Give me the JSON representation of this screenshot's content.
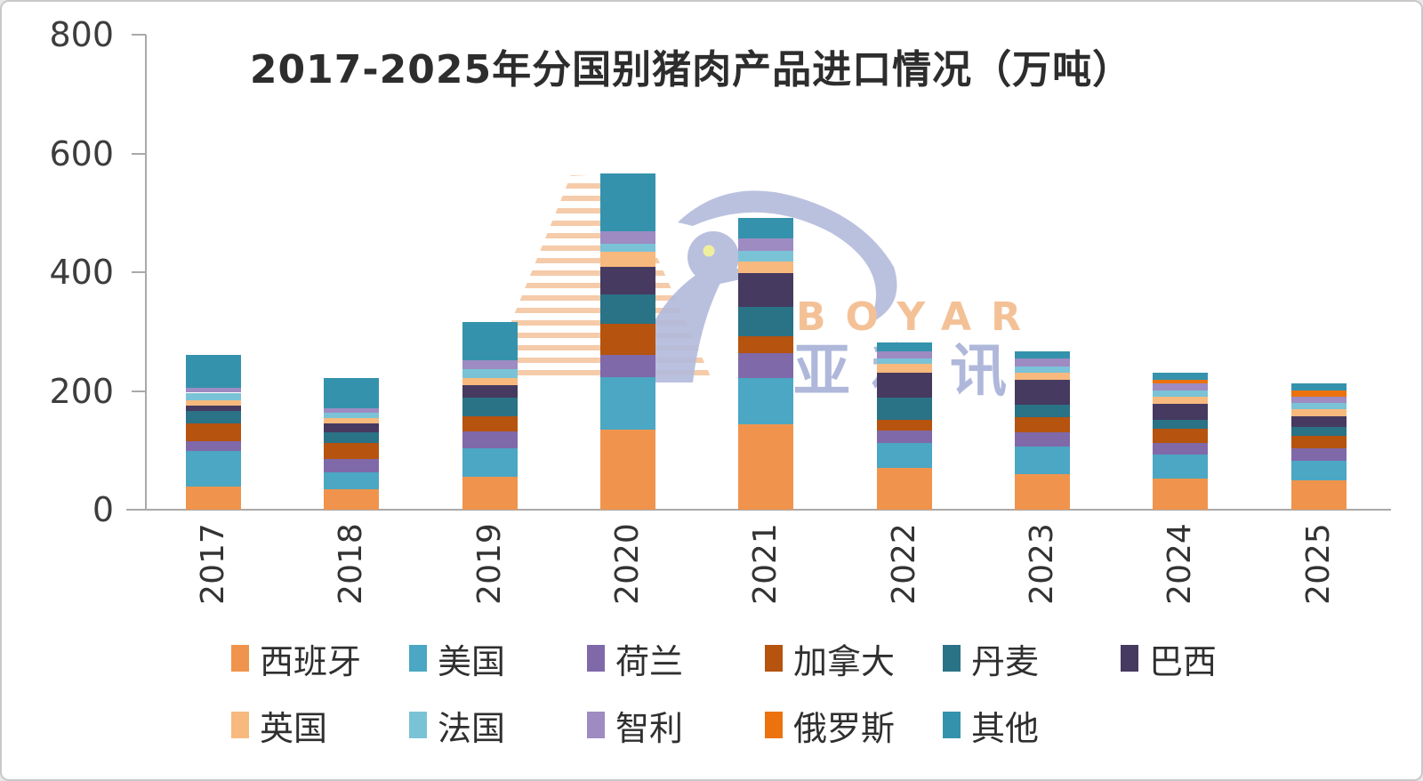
{
  "title": "2017-2025年分国别猪肉产品进口情况（万吨）",
  "watermark": {
    "en": "BOYAR",
    "cn": "亚和讯"
  },
  "chart_data": {
    "type": "bar",
    "stacked": true,
    "title": "2017-2025年分国别猪肉产品进口情况（万吨）",
    "unit": "万吨",
    "xlabel": "",
    "ylabel": "",
    "ylim": [
      0,
      800
    ],
    "y_ticks": [
      0,
      200,
      400,
      600,
      800
    ],
    "grid": false,
    "legend_position": "bottom",
    "categories": [
      "2017",
      "2018",
      "2019",
      "2020",
      "2021",
      "2022",
      "2023",
      "2024",
      "2025"
    ],
    "series": [
      {
        "name": "西班牙",
        "color": "#F0944D",
        "values": [
          39,
          34,
          55,
          135,
          144,
          71,
          60,
          52,
          49
        ]
      },
      {
        "name": "美国",
        "color": "#4BA7C3",
        "values": [
          60,
          29,
          48,
          88,
          78,
          41,
          46,
          41,
          34
        ]
      },
      {
        "name": "荷兰",
        "color": "#8069A9",
        "values": [
          16,
          22,
          29,
          37,
          41,
          22,
          24,
          19,
          21
        ]
      },
      {
        "name": "加拿大",
        "color": "#B5530F",
        "values": [
          31,
          27,
          26,
          53,
          29,
          18,
          26,
          24,
          20
        ]
      },
      {
        "name": "丹麦",
        "color": "#2A7286",
        "values": [
          21,
          19,
          31,
          50,
          49,
          37,
          21,
          16,
          16
        ]
      },
      {
        "name": "巴西",
        "color": "#463A60",
        "values": [
          9,
          15,
          21,
          46,
          57,
          42,
          41,
          27,
          17
        ]
      },
      {
        "name": "英国",
        "color": "#F7B97E",
        "values": [
          9,
          9,
          12,
          25,
          20,
          14,
          12,
          11,
          12
        ]
      },
      {
        "name": "法国",
        "color": "#7AC3D6",
        "values": [
          12,
          9,
          15,
          14,
          18,
          10,
          11,
          11,
          11
        ]
      },
      {
        "name": "智利",
        "color": "#9D8BC2",
        "values": [
          8,
          7,
          15,
          21,
          21,
          11,
          13,
          12,
          11
        ]
      },
      {
        "name": "俄罗斯",
        "color": "#EB720F",
        "values": [
          0,
          0,
          0,
          0,
          0,
          0,
          0,
          5,
          10
        ]
      },
      {
        "name": "其他",
        "color": "#3592AC",
        "values": [
          55,
          51,
          64,
          97,
          34,
          16,
          12,
          12,
          12
        ]
      }
    ],
    "legend_rows": [
      [
        0,
        1,
        2,
        3,
        4,
        5
      ],
      [
        6,
        7,
        8,
        9,
        10
      ]
    ],
    "totals": [
      260,
      222,
      316,
      566,
      491,
      282,
      266,
      230,
      213
    ]
  }
}
